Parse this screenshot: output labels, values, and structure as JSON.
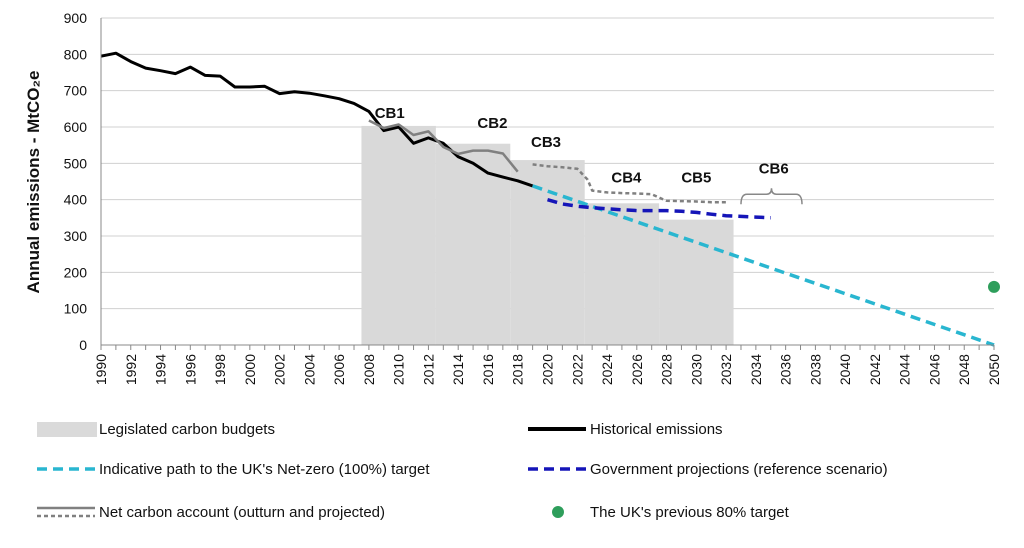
{
  "chart_data": {
    "type": "line",
    "title": "",
    "xlabel": "",
    "ylabel": "Annual emissions - MtCO₂e",
    "ylim": [
      0,
      900
    ],
    "xlim": [
      1990,
      2050
    ],
    "y_ticks": [
      "0",
      "100",
      "200",
      "300",
      "400",
      "500",
      "600",
      "700",
      "800",
      "900"
    ],
    "x_ticks": [
      "1990",
      "1992",
      "1994",
      "1996",
      "1998",
      "2000",
      "2002",
      "2004",
      "2006",
      "2008",
      "2010",
      "2012",
      "2014",
      "2016",
      "2018",
      "2020",
      "2022",
      "2024",
      "2026",
      "2028",
      "2030",
      "2032",
      "2034",
      "2036",
      "2038",
      "2040",
      "2042",
      "2044",
      "2046",
      "2048",
      "2050"
    ],
    "grid": true,
    "carbon_budgets": [
      {
        "name": "CB1",
        "start": 2008,
        "end": 2012,
        "level": 603
      },
      {
        "name": "CB2",
        "start": 2013,
        "end": 2017,
        "level": 554
      },
      {
        "name": "CB3",
        "start": 2018,
        "end": 2022,
        "level": 509
      },
      {
        "name": "CB4",
        "start": 2023,
        "end": 2027,
        "level": 390
      },
      {
        "name": "CB5",
        "start": 2028,
        "end": 2032,
        "level": 345
      },
      {
        "name": "CB6",
        "start": 2033,
        "end": 2037,
        "level": null
      }
    ],
    "series": [
      {
        "name": "Historical emissions",
        "color": "#000000",
        "style": "solid",
        "points": [
          [
            1990,
            795
          ],
          [
            1991,
            803
          ],
          [
            1992,
            780
          ],
          [
            1993,
            762
          ],
          [
            1994,
            755
          ],
          [
            1995,
            747
          ],
          [
            1996,
            765
          ],
          [
            1997,
            742
          ],
          [
            1998,
            740
          ],
          [
            1999,
            710
          ],
          [
            2000,
            710
          ],
          [
            2001,
            712
          ],
          [
            2002,
            692
          ],
          [
            2003,
            697
          ],
          [
            2004,
            693
          ],
          [
            2005,
            686
          ],
          [
            2006,
            678
          ],
          [
            2007,
            665
          ],
          [
            2008,
            643
          ],
          [
            2009,
            590
          ],
          [
            2010,
            600
          ],
          [
            2011,
            555
          ],
          [
            2012,
            570
          ],
          [
            2013,
            555
          ],
          [
            2014,
            518
          ],
          [
            2015,
            500
          ],
          [
            2016,
            473
          ],
          [
            2017,
            462
          ],
          [
            2018,
            452
          ],
          [
            2019,
            438
          ]
        ]
      },
      {
        "name": "Net carbon account (outturn)",
        "color": "#808080",
        "style": "solid",
        "points": [
          [
            2008,
            618
          ],
          [
            2009,
            597
          ],
          [
            2010,
            607
          ],
          [
            2011,
            578
          ],
          [
            2012,
            588
          ],
          [
            2013,
            545
          ],
          [
            2014,
            526
          ],
          [
            2015,
            535
          ],
          [
            2016,
            535
          ],
          [
            2017,
            527
          ],
          [
            2018,
            477
          ]
        ]
      },
      {
        "name": "Net carbon account (projected)",
        "color": "#808080",
        "style": "dashed",
        "points": [
          [
            2019,
            497
          ],
          [
            2020,
            492
          ],
          [
            2021,
            489
          ],
          [
            2022,
            485
          ],
          [
            2022.7,
            455
          ],
          [
            2023,
            425
          ],
          [
            2024,
            420
          ],
          [
            2025,
            418
          ],
          [
            2026,
            417
          ],
          [
            2027,
            415
          ],
          [
            2027.7,
            402
          ],
          [
            2028,
            397
          ],
          [
            2029,
            396
          ],
          [
            2030,
            395
          ],
          [
            2031,
            393
          ],
          [
            2032,
            393
          ]
        ]
      },
      {
        "name": "Indicative path to the UK's Net-zero (100%) target",
        "color": "#29B6D0",
        "style": "dashed",
        "points": [
          [
            2019,
            438
          ],
          [
            2050,
            0
          ]
        ]
      },
      {
        "name": "Government projections (reference scenario)",
        "color": "#1515B8",
        "style": "dashed",
        "points": [
          [
            2020,
            400
          ],
          [
            2021,
            388
          ],
          [
            2022,
            382
          ],
          [
            2023,
            378
          ],
          [
            2024,
            375
          ],
          [
            2025,
            372
          ],
          [
            2026,
            370
          ],
          [
            2027,
            370
          ],
          [
            2028,
            370
          ],
          [
            2029,
            368
          ],
          [
            2030,
            365
          ],
          [
            2031,
            360
          ],
          [
            2032,
            356
          ],
          [
            2033,
            354
          ],
          [
            2034,
            352
          ],
          [
            2035,
            350
          ]
        ]
      },
      {
        "name": "The UK's previous 80% target",
        "color": "#2E9E5B",
        "style": "point",
        "points": [
          [
            2050,
            160
          ]
        ]
      }
    ],
    "legend": [
      {
        "label": "Legislated carbon budgets",
        "kind": "box",
        "color": "#DADADA"
      },
      {
        "label": "Historical emissions",
        "kind": "solid",
        "color": "#000000"
      },
      {
        "label": "Indicative path to the UK's Net-zero (100%) target",
        "kind": "dashed",
        "color": "#29B6D0"
      },
      {
        "label": "Government projections (reference scenario)",
        "kind": "dashed",
        "color": "#1515B8"
      },
      {
        "label": "Net carbon account (outturn and projected)",
        "kind": "solid-dashed",
        "color": "#808080"
      },
      {
        "label": "The UK's previous 80% target",
        "kind": "dot",
        "color": "#2E9E5B"
      }
    ]
  }
}
